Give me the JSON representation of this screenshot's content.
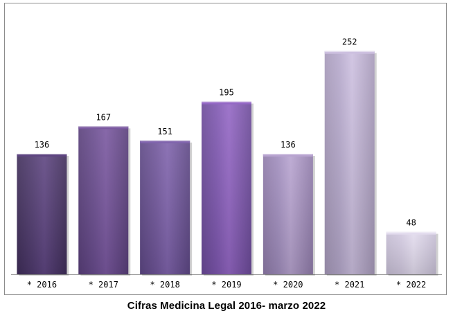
{
  "chart_data": {
    "type": "bar",
    "title": "Cifras Medicina Legal 2016- marzo 2022",
    "categories": [
      "* 2016",
      "* 2017",
      "* 2018",
      "* 2019",
      "* 2020",
      "* 2021",
      "* 2022"
    ],
    "values": [
      136,
      167,
      151,
      195,
      136,
      252,
      48
    ],
    "data_labels": [
      "136",
      "167",
      "151",
      "195",
      "136",
      "252",
      "48"
    ],
    "xlabel": "",
    "ylabel": "",
    "ylim": [
      0,
      290
    ],
    "grid": false,
    "legend": "none",
    "colors": {
      "bars_top": [
        "#5e4581",
        "#7a58a0",
        "#8064ad",
        "#9467c5",
        "#b8a4d0",
        "#cdc0e0",
        "#e3dcee"
      ],
      "bars_bottom": [
        "#3f2d59",
        "#593f7a",
        "#5d4784",
        "#6b4a98",
        "#8f7ba9",
        "#a699b9",
        "#c6bed4"
      ],
      "bars_mid": [
        "#4f3a6e",
        "#694c8e",
        "#6f5599",
        "#7e57b0",
        "#a08dbd",
        "#b6a9cc",
        "#d2c9e0"
      ]
    }
  }
}
